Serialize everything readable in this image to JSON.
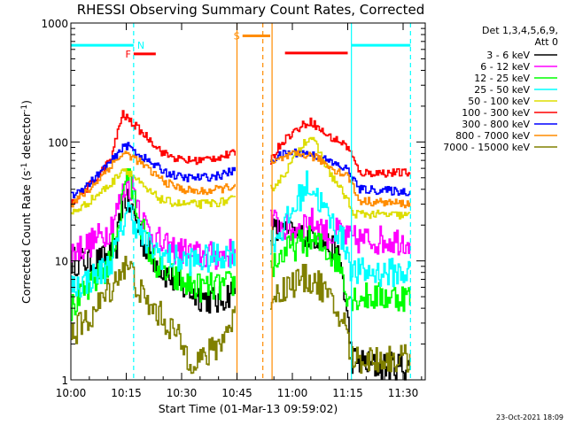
{
  "chart_data": {
    "type": "line",
    "title": "RHESSI Observing Summary Count Rates, Corrected",
    "xlabel": "Start Time (01-Mar-13 09:59:02)",
    "ylabel_main": "Corrected Count Rate (s",
    "ylabel_sup1": "-1",
    "ylabel_mid": " detector",
    "ylabel_sup2": "-1",
    "ylabel_end": ")",
    "y_scale": "log",
    "ylim": [
      1,
      1000
    ],
    "xlim_minutes": [
      0,
      96
    ],
    "x_ticks": [
      {
        "t": 0,
        "label": "10:00"
      },
      {
        "t": 15,
        "label": "10:15"
      },
      {
        "t": 30,
        "label": "10:30"
      },
      {
        "t": 45,
        "label": "10:45"
      },
      {
        "t": 60,
        "label": "11:00"
      },
      {
        "t": 75,
        "label": "11:15"
      },
      {
        "t": 90,
        "label": "11:30"
      }
    ],
    "y_ticks": [
      {
        "v": 1,
        "label": "1"
      },
      {
        "v": 10,
        "label": "10"
      },
      {
        "v": 100,
        "label": "100"
      },
      {
        "v": 1000,
        "label": "1000"
      }
    ],
    "legend_header": [
      "Det 1,3,4,5,6,9,",
      "Att 0"
    ],
    "legend_position": "right",
    "grid": false,
    "series": [
      {
        "name": "3 - 6 keV",
        "color": "#000000",
        "t": [
          0,
          8,
          12,
          14,
          17,
          20,
          25,
          30,
          35,
          40,
          44.5,
          54,
          58,
          62,
          65,
          68,
          71,
          73,
          76,
          82,
          92
        ],
        "values": [
          10,
          10,
          12,
          35,
          25,
          13,
          8,
          6,
          5,
          4.5,
          6,
          18,
          17,
          16,
          17,
          15,
          12,
          10,
          1.5,
          1.3,
          1.3
        ]
      },
      {
        "name": "6 - 12 keV",
        "color": "#ff00ff",
        "t": [
          0,
          5,
          10,
          13,
          15,
          17,
          20,
          25,
          30,
          35,
          40,
          44.5,
          54,
          56,
          60,
          64,
          67,
          70,
          73,
          75,
          92
        ],
        "values": [
          12,
          14,
          18,
          30,
          45,
          40,
          20,
          13,
          12,
          11,
          11,
          12,
          22,
          20,
          18,
          22,
          20,
          16,
          18,
          15,
          15
        ]
      },
      {
        "name": "12 - 25 keV",
        "color": "#00ff00",
        "t": [
          0,
          5,
          10,
          13,
          15,
          18,
          22,
          25,
          30,
          35,
          40,
          44.5,
          54,
          58,
          62,
          65,
          68,
          71,
          73,
          75,
          92
        ],
        "values": [
          4,
          6,
          9,
          22,
          60,
          25,
          10,
          8,
          6.5,
          6,
          6,
          6.5,
          9,
          12,
          14,
          15,
          13,
          11,
          9,
          5,
          5
        ]
      },
      {
        "name": "25 - 50 keV",
        "color": "#00ffff",
        "t": [
          0,
          5,
          10,
          13,
          15,
          17,
          20,
          25,
          30,
          35,
          40,
          44.5,
          54,
          58,
          62,
          64,
          66,
          69,
          72,
          75,
          76,
          92
        ],
        "values": [
          6,
          7,
          9,
          15,
          28,
          22,
          14,
          11,
          10,
          10,
          11,
          12,
          14,
          20,
          35,
          45,
          38,
          25,
          18,
          12,
          8,
          8
        ]
      },
      {
        "name": "50 - 100 keV",
        "color": "#dddd00",
        "t": [
          0,
          4,
          8,
          11,
          13,
          14,
          16,
          20,
          25,
          30,
          35,
          40,
          44.5,
          54,
          57,
          60,
          63,
          65,
          67,
          70,
          73,
          75,
          76,
          92
        ],
        "values": [
          25,
          30,
          38,
          45,
          55,
          60,
          55,
          40,
          32,
          30,
          30,
          31,
          33,
          40,
          50,
          70,
          100,
          110,
          85,
          55,
          40,
          32,
          25,
          24
        ]
      },
      {
        "name": "100 - 300 keV",
        "color": "#ff0000",
        "t": [
          0,
          4,
          8,
          11,
          13,
          14,
          15,
          18,
          22,
          25,
          30,
          35,
          40,
          44.5,
          54,
          57,
          60,
          63,
          65,
          67,
          70,
          73,
          75,
          78,
          92
        ],
        "values": [
          30,
          40,
          55,
          75,
          140,
          170,
          160,
          130,
          100,
          80,
          70,
          70,
          75,
          80,
          70,
          100,
          120,
          140,
          150,
          130,
          110,
          100,
          90,
          55,
          55
        ]
      },
      {
        "name": "300 - 800 keV",
        "color": "#0000ff",
        "t": [
          0,
          5,
          10,
          13,
          14,
          16,
          18,
          22,
          26,
          30,
          35,
          40,
          44.5,
          54,
          57,
          60,
          64,
          67,
          70,
          73,
          75,
          78,
          92
        ],
        "values": [
          35,
          45,
          65,
          80,
          95,
          90,
          80,
          65,
          55,
          50,
          50,
          52,
          58,
          70,
          78,
          82,
          80,
          75,
          68,
          62,
          58,
          40,
          38
        ]
      },
      {
        "name": "800 - 7000 keV",
        "color": "#ff8c00",
        "t": [
          0,
          5,
          10,
          13,
          15,
          18,
          22,
          26,
          30,
          35,
          40,
          44.5,
          54,
          57,
          60,
          64,
          67,
          70,
          73,
          75,
          78,
          92
        ],
        "values": [
          30,
          40,
          60,
          75,
          80,
          70,
          55,
          45,
          40,
          38,
          40,
          43,
          65,
          72,
          78,
          78,
          72,
          62,
          55,
          52,
          32,
          30
        ]
      },
      {
        "name": "7000 - 15000 keV",
        "color": "#808000",
        "t": [
          0,
          4,
          8,
          12,
          14,
          16,
          18,
          20,
          24,
          28,
          32,
          36,
          40,
          44.5,
          54,
          58,
          62,
          65,
          68,
          71,
          74,
          76,
          92
        ],
        "values": [
          2.5,
          3,
          4.5,
          7,
          9,
          8.5,
          6,
          4.5,
          3.5,
          2.5,
          1.5,
          1.5,
          2,
          3.5,
          5,
          6,
          7,
          7,
          6,
          4,
          3,
          1.5,
          1.5
        ]
      }
    ],
    "flags": [
      {
        "code": "F",
        "color": "#ff0000",
        "t_start": 17,
        "t_end": 23,
        "level": 550,
        "label_side": "left"
      },
      {
        "code": "N",
        "color": "#00ffff",
        "t_start": 0,
        "t_end": 17,
        "level": 650,
        "label_side": "right"
      },
      {
        "code": "",
        "color": "#00ffff",
        "t_start": 76,
        "t_end": 92,
        "level": 650,
        "label_side": "none"
      },
      {
        "code": "S",
        "color": "#ff8c00",
        "t_start": 46.5,
        "t_end": 54,
        "level": 780,
        "label_side": "left"
      },
      {
        "code": "",
        "color": "#ff0000",
        "t_start": 58,
        "t_end": 75,
        "level": 560,
        "label_side": "none"
      }
    ],
    "vlines": [
      {
        "t": 17,
        "color": "#00ffff",
        "dashed": true
      },
      {
        "t": 45,
        "color": "#ff8c00",
        "dashed": false
      },
      {
        "t": 52,
        "color": "#ff8c00",
        "dashed": true
      },
      {
        "t": 54.5,
        "color": "#ff8c00",
        "dashed": false
      },
      {
        "t": 76,
        "color": "#00ffff",
        "dashed": false
      },
      {
        "t": 92,
        "color": "#00ffff",
        "dashed": true
      }
    ],
    "data_gap": [
      44.5,
      54
    ]
  },
  "timestamp": "23-Oct-2021 18:09"
}
